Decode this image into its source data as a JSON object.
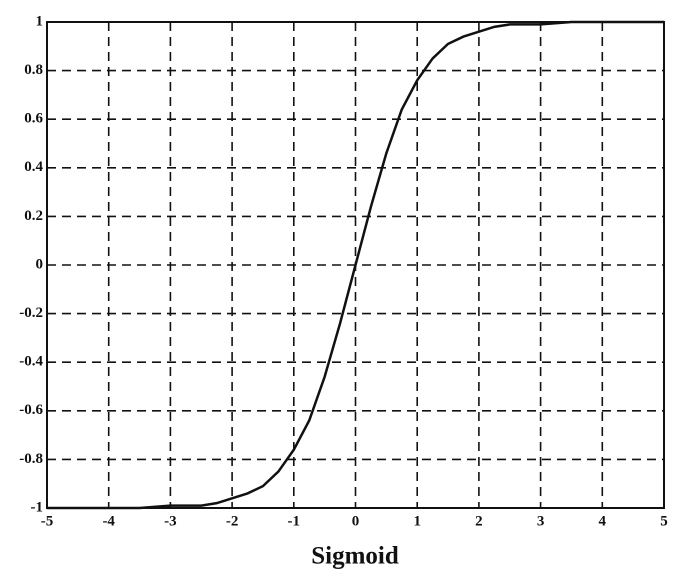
{
  "chart_data": {
    "type": "line",
    "xlabel": "Sigmoid",
    "x": [
      -5,
      -4.5,
      -4,
      -3.5,
      -3,
      -2.75,
      -2.5,
      -2.25,
      -2,
      -1.75,
      -1.5,
      -1.25,
      -1,
      -0.75,
      -0.5,
      -0.25,
      0,
      0.25,
      0.5,
      0.75,
      1,
      1.25,
      1.5,
      1.75,
      2,
      2.25,
      2.5,
      2.75,
      3,
      3.5,
      4,
      4.5,
      5
    ],
    "values": [
      -1,
      -1,
      -1,
      -1,
      -0.99,
      -0.99,
      -0.99,
      -0.98,
      -0.96,
      -0.94,
      -0.91,
      -0.85,
      -0.76,
      -0.64,
      -0.46,
      -0.24,
      0,
      0.24,
      0.46,
      0.64,
      0.76,
      0.85,
      0.91,
      0.94,
      0.96,
      0.98,
      0.99,
      0.99,
      0.99,
      1,
      1,
      1,
      1
    ],
    "color": "#111111",
    "xlim": [
      -5,
      5
    ],
    "xticks": [
      -5,
      -4,
      -3,
      -2,
      -1,
      0,
      1,
      2,
      3,
      4,
      5
    ],
    "ylim": [
      -1,
      1
    ],
    "yticks": [
      -1,
      -0.8,
      -0.6,
      -0.4,
      -0.2,
      0,
      0.2,
      0.4,
      0.6,
      0.8,
      1
    ],
    "grid": true
  }
}
